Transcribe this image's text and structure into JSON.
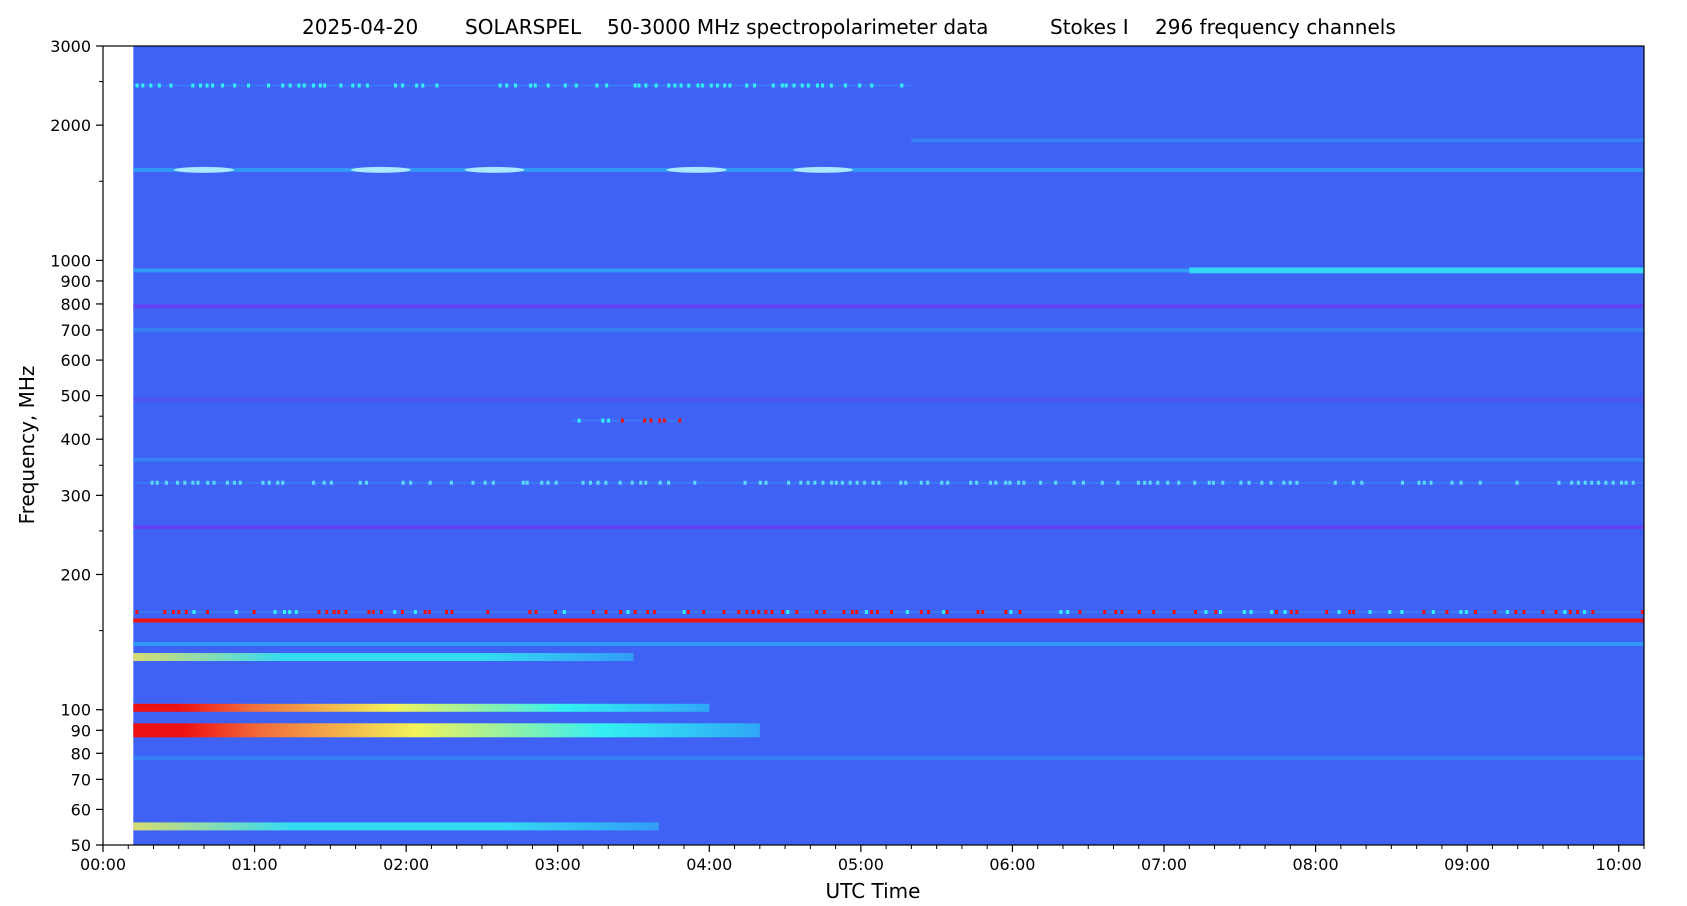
{
  "chart_data": {
    "type": "heatmap",
    "title_parts": [
      "2025-04-20",
      "SOLARSPEL",
      "50-3000 MHz spectropolarimeter data",
      "Stokes I",
      "296 frequency channels"
    ],
    "xlabel": "UTC Time",
    "ylabel": "Frequency, MHz",
    "y_scale": "log",
    "ylim": [
      50,
      3000
    ],
    "xlim": [
      "00:00",
      "10:10"
    ],
    "data_start": "00:12",
    "x_ticks": [
      "00:00",
      "01:00",
      "02:00",
      "03:00",
      "04:00",
      "05:00",
      "06:00",
      "07:00",
      "08:00",
      "09:00",
      "10:00"
    ],
    "y_ticks": [
      50,
      60,
      70,
      80,
      90,
      100,
      200,
      300,
      400,
      500,
      600,
      700,
      800,
      900,
      1000,
      2000,
      3000
    ],
    "colors": {
      "background": "#3f62f5",
      "low": "#6a3df2",
      "mid": "#2fa6f7",
      "cyan": "#33f0f2",
      "yellow": "#f2f25a",
      "red": "#ee1111"
    },
    "bands": [
      {
        "freq": 2450,
        "start": "00:02",
        "end": "05:20",
        "level": "cyan-dots"
      },
      {
        "freq": 1850,
        "start": "05:20",
        "end": "10:10",
        "level": "mid-faint"
      },
      {
        "freq": 1590,
        "start": "00:05",
        "end": "10:10",
        "level": "mid",
        "bright_spots": [
          "00:40",
          "01:50",
          "02:35",
          "03:55",
          "04:45"
        ]
      },
      {
        "freq": 950,
        "start": "00:00",
        "end": "10:10",
        "level": "mid-cyan-late"
      },
      {
        "freq": 790,
        "start": "00:00",
        "end": "10:10",
        "level": "low-to-mid"
      },
      {
        "freq": 700,
        "start": "00:00",
        "end": "10:10",
        "level": "mid-faint"
      },
      {
        "freq": 490,
        "start": "00:00",
        "end": "10:10",
        "level": "low-faint"
      },
      {
        "freq": 440,
        "start": "03:05",
        "end": "03:50",
        "level": "red-dots"
      },
      {
        "freq": 360,
        "start": "00:00",
        "end": "10:10",
        "level": "mid-faint"
      },
      {
        "freq": 320,
        "start": "00:00",
        "end": "10:10",
        "level": "mid-dots"
      },
      {
        "freq": 255,
        "start": "00:00",
        "end": "10:10",
        "level": "low"
      },
      {
        "freq": 165,
        "start": "00:00",
        "end": "10:10",
        "level": "red-dots"
      },
      {
        "freq": 158,
        "start": "00:00",
        "end": "10:10",
        "level": "red-line"
      },
      {
        "freq": 140,
        "start": "00:00",
        "end": "10:10",
        "level": "mid"
      },
      {
        "freq": 131,
        "start": "00:00",
        "end": "03:30",
        "level": "cyan-band"
      },
      {
        "freq": 101,
        "start": "00:00",
        "end": "04:00",
        "level": "red-yellow-band"
      },
      {
        "freq": 90,
        "start": "00:00",
        "end": "04:20",
        "level": "red-yellow-band-wide"
      },
      {
        "freq": 78,
        "start": "00:00",
        "end": "10:10",
        "level": "mid-faint"
      },
      {
        "freq": 55,
        "start": "00:00",
        "end": "03:40",
        "level": "cyan-yellow-band"
      }
    ]
  }
}
